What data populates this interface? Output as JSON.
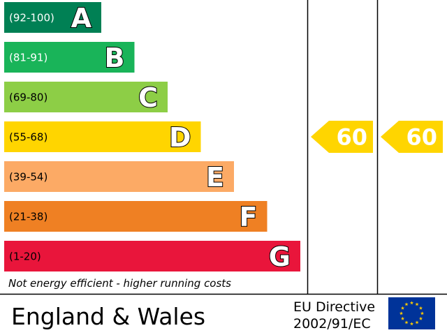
{
  "chart_data": {
    "type": "bar",
    "bands": [
      {
        "range": "(92-100)",
        "letter": "A",
        "color": "#008054"
      },
      {
        "range": "(81-91)",
        "letter": "B",
        "color": "#19b459"
      },
      {
        "range": "(69-80)",
        "letter": "C",
        "color": "#8dce46"
      },
      {
        "range": "(55-68)",
        "letter": "D",
        "color": "#ffd500"
      },
      {
        "range": "(39-54)",
        "letter": "E",
        "color": "#fcaa65"
      },
      {
        "range": "(21-38)",
        "letter": "F",
        "color": "#ef8023"
      },
      {
        "range": "(1-20)",
        "letter": "G",
        "color": "#e9153b"
      }
    ],
    "footnote": "Not energy efficient - higher running costs",
    "current": {
      "value": "60",
      "band": "D",
      "color": "#ffd500"
    },
    "potential": {
      "value": "60",
      "band": "D",
      "color": "#ffd500"
    }
  },
  "footer": {
    "region": "England & Wales",
    "directive_line1": "EU Directive",
    "directive_line2": "2002/91/EC"
  },
  "colors": {
    "eu_flag_blue": "#003399",
    "eu_flag_stars": "#ffcc00"
  }
}
